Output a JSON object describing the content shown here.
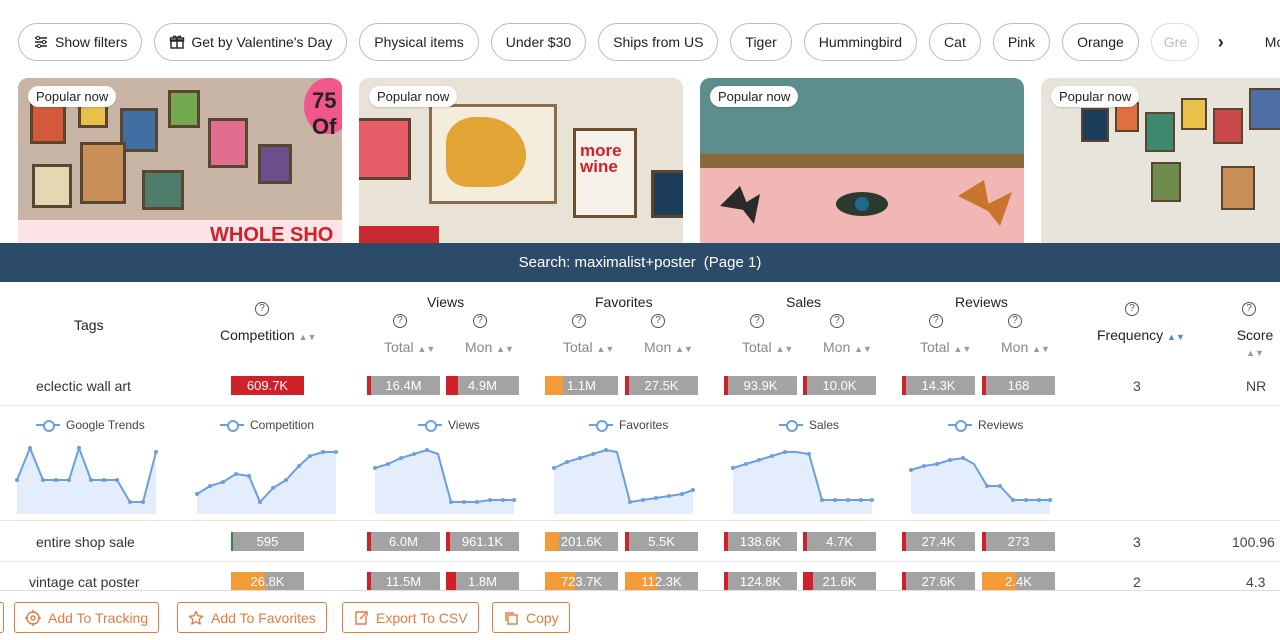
{
  "filters": {
    "chips": [
      {
        "label": "Show filters",
        "icon": "sliders-icon"
      },
      {
        "label": "Get by Valentine's Day",
        "icon": "gift-icon"
      },
      {
        "label": "Physical items"
      },
      {
        "label": "Under $30"
      },
      {
        "label": "Ships from US"
      },
      {
        "label": "Tiger"
      },
      {
        "label": "Hummingbird"
      },
      {
        "label": "Cat"
      },
      {
        "label": "Pink"
      },
      {
        "label": "Orange"
      }
    ],
    "faded_chip": "Gre",
    "sort_label": "Most"
  },
  "listings": [
    {
      "badge": "Popular now",
      "overlay": "75 Of",
      "banner": "WHOLE SHO"
    },
    {
      "badge": "Popular now",
      "art_text": "more wine"
    },
    {
      "badge": "Popular now"
    },
    {
      "badge": "Popular now"
    }
  ],
  "panel": {
    "title": "Search:  maximalist+poster",
    "page": "(Page 1)",
    "headers": {
      "tags": "Tags",
      "competition": "Competition",
      "views": "Views",
      "favorites": "Favorites",
      "sales": "Sales",
      "reviews": "Reviews",
      "frequency": "Frequency",
      "score": "Score",
      "total": "Total",
      "mon": "Mon"
    },
    "trend_legends": [
      "Google Trends",
      "Competition",
      "Views",
      "Favorites",
      "Sales",
      "Reviews"
    ],
    "rows": [
      {
        "tag": "eclectic wall art",
        "competition": "609.7K",
        "views_total": "16.4M",
        "views_mon": "4.9M",
        "fav_total": "1.1M",
        "fav_mon": "27.5K",
        "sales_total": "93.9K",
        "sales_mon": "10.0K",
        "rev_total": "14.3K",
        "rev_mon": "168",
        "frequency": "3",
        "score": "NR"
      },
      {
        "tag": "entire shop sale",
        "competition": "595",
        "views_total": "6.0M",
        "views_mon": "961.1K",
        "fav_total": "201.6K",
        "fav_mon": "5.5K",
        "sales_total": "138.6K",
        "sales_mon": "4.7K",
        "rev_total": "27.4K",
        "rev_mon": "273",
        "frequency": "3",
        "score": "100.96"
      },
      {
        "tag": "vintage cat poster",
        "competition": "26.8K",
        "views_total": "11.5M",
        "views_mon": "1.8M",
        "fav_total": "723.7K",
        "fav_mon": "112.3K",
        "sales_total": "124.8K",
        "sales_mon": "21.6K",
        "rev_total": "27.6K",
        "rev_mon": "2.4K",
        "frequency": "2",
        "score": "4.3"
      }
    ],
    "colors": {
      "red": "#d0202a",
      "orange": "#f29b38",
      "green": "#2e8b3a",
      "gray": "#a3a3a3",
      "line": "#6b9fe0"
    }
  },
  "toolbar": {
    "add_tracking": "Add To Tracking",
    "add_favorites": "Add To Favorites",
    "export_csv": "Export To CSV",
    "copy": "Copy"
  }
}
